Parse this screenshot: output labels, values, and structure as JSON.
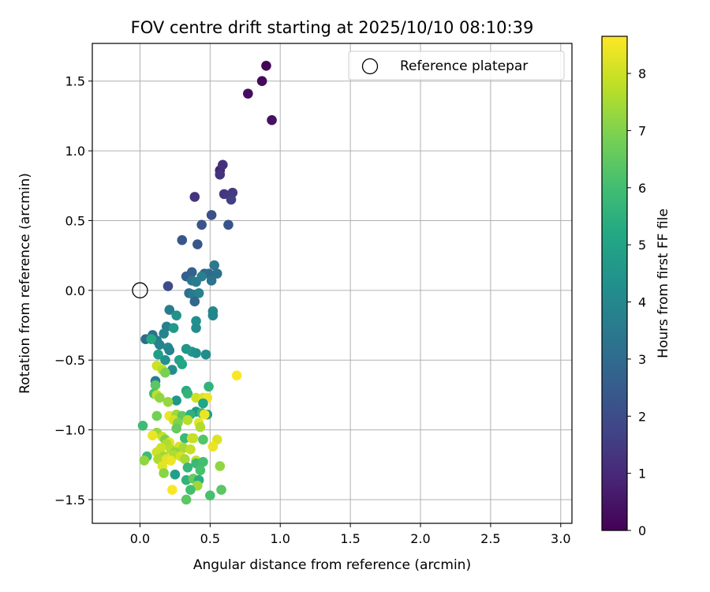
{
  "chart_data": {
    "type": "scatter",
    "title": "FOV centre drift starting at 2025/10/10 08:10:39",
    "xlabel": "Angular distance from reference (arcmin)",
    "ylabel": "Rotation from reference (arcmin)",
    "xlim": [
      -0.34,
      3.08
    ],
    "ylim": [
      -1.67,
      1.77
    ],
    "xticks": [
      0.0,
      0.5,
      1.0,
      1.5,
      2.0,
      2.5,
      3.0
    ],
    "xtick_labels": [
      "0.0",
      "0.5",
      "1.0",
      "1.5",
      "2.0",
      "2.5",
      "3.0"
    ],
    "yticks": [
      -1.5,
      -1.0,
      -0.5,
      0.0,
      0.5,
      1.0,
      1.5
    ],
    "ytick_labels": [
      "−1.5",
      "−1.0",
      "−0.5",
      "0.0",
      "0.5",
      "1.0",
      "1.5"
    ],
    "grid": true,
    "legend": {
      "label": "Reference platepar",
      "position": "top-right"
    },
    "reference_point": {
      "x": 0.0,
      "y": 0.0
    },
    "colorbar": {
      "label": "Hours from first FF file",
      "range": [
        0,
        8.65
      ],
      "ticks": [
        0,
        1,
        2,
        3,
        4,
        5,
        6,
        7,
        8
      ],
      "tick_labels": [
        "0",
        "1",
        "2",
        "3",
        "4",
        "5",
        "6",
        "7",
        "8"
      ],
      "colormap": "viridis"
    },
    "series": [
      {
        "name": "FOV centre",
        "points": [
          {
            "x": 0.9,
            "y": 1.61,
            "h": 0.1
          },
          {
            "x": 0.87,
            "y": 1.5,
            "h": 0.2
          },
          {
            "x": 0.77,
            "y": 1.41,
            "h": 0.3
          },
          {
            "x": 0.94,
            "y": 1.22,
            "h": 0.4
          },
          {
            "x": 0.57,
            "y": 0.86,
            "h": 0.8
          },
          {
            "x": 0.59,
            "y": 0.9,
            "h": 1.2
          },
          {
            "x": 0.57,
            "y": 0.83,
            "h": 1.3
          },
          {
            "x": 0.6,
            "y": 0.69,
            "h": 1.4
          },
          {
            "x": 0.66,
            "y": 0.7,
            "h": 1.5
          },
          {
            "x": 0.65,
            "y": 0.65,
            "h": 1.6
          },
          {
            "x": 0.39,
            "y": 0.67,
            "h": 1.3
          },
          {
            "x": 0.51,
            "y": 0.54,
            "h": 2.1
          },
          {
            "x": 0.44,
            "y": 0.47,
            "h": 2.2
          },
          {
            "x": 0.63,
            "y": 0.47,
            "h": 2.2
          },
          {
            "x": 0.3,
            "y": 0.36,
            "h": 2.3
          },
          {
            "x": 0.41,
            "y": 0.33,
            "h": 2.3
          },
          {
            "x": 0.53,
            "y": 0.18,
            "h": 3.5
          },
          {
            "x": 0.33,
            "y": 0.1,
            "h": 2.6
          },
          {
            "x": 0.37,
            "y": 0.13,
            "h": 2.7
          },
          {
            "x": 0.46,
            "y": 0.12,
            "h": 2.8
          },
          {
            "x": 0.49,
            "y": 0.12,
            "h": 3.0
          },
          {
            "x": 0.55,
            "y": 0.12,
            "h": 3.2
          },
          {
            "x": 0.37,
            "y": 0.07,
            "h": 3.4
          },
          {
            "x": 0.4,
            "y": 0.06,
            "h": 3.6
          },
          {
            "x": 0.51,
            "y": 0.07,
            "h": 3.3
          },
          {
            "x": 0.44,
            "y": 0.1,
            "h": 3.7
          },
          {
            "x": 0.2,
            "y": 0.03,
            "h": 2.0
          },
          {
            "x": 0.35,
            "y": -0.02,
            "h": 3.2
          },
          {
            "x": 0.38,
            "y": -0.03,
            "h": 3.5
          },
          {
            "x": 0.42,
            "y": -0.02,
            "h": 3.8
          },
          {
            "x": 0.39,
            "y": -0.08,
            "h": 2.9
          },
          {
            "x": 0.21,
            "y": -0.14,
            "h": 3.6
          },
          {
            "x": 0.52,
            "y": -0.15,
            "h": 4.0
          },
          {
            "x": 0.52,
            "y": -0.18,
            "h": 3.9
          },
          {
            "x": 0.26,
            "y": -0.18,
            "h": 4.4
          },
          {
            "x": 0.4,
            "y": -0.22,
            "h": 4.3
          },
          {
            "x": 0.4,
            "y": -0.27,
            "h": 4.2
          },
          {
            "x": 0.19,
            "y": -0.26,
            "h": 3.7
          },
          {
            "x": 0.24,
            "y": -0.27,
            "h": 4.6
          },
          {
            "x": 0.17,
            "y": -0.31,
            "h": 3.9
          },
          {
            "x": 0.09,
            "y": -0.32,
            "h": 3.3
          },
          {
            "x": 0.04,
            "y": -0.35,
            "h": 3.0
          },
          {
            "x": 0.12,
            "y": -0.36,
            "h": 3.6
          },
          {
            "x": 0.08,
            "y": -0.35,
            "h": 5.3
          },
          {
            "x": 0.14,
            "y": -0.39,
            "h": 3.8
          },
          {
            "x": 0.2,
            "y": -0.41,
            "h": 4.1
          },
          {
            "x": 0.21,
            "y": -0.43,
            "h": 3.9
          },
          {
            "x": 0.33,
            "y": -0.42,
            "h": 4.5
          },
          {
            "x": 0.37,
            "y": -0.44,
            "h": 4.6
          },
          {
            "x": 0.4,
            "y": -0.45,
            "h": 4.3
          },
          {
            "x": 0.47,
            "y": -0.46,
            "h": 4.2
          },
          {
            "x": 0.13,
            "y": -0.46,
            "h": 4.8
          },
          {
            "x": 0.18,
            "y": -0.5,
            "h": 4.4
          },
          {
            "x": 0.28,
            "y": -0.5,
            "h": 5.0
          },
          {
            "x": 0.3,
            "y": -0.53,
            "h": 5.1
          },
          {
            "x": 0.12,
            "y": -0.54,
            "h": 8.0
          },
          {
            "x": 0.16,
            "y": -0.57,
            "h": 7.7
          },
          {
            "x": 0.23,
            "y": -0.57,
            "h": 4.2
          },
          {
            "x": 0.18,
            "y": -0.59,
            "h": 6.9
          },
          {
            "x": 0.69,
            "y": -0.61,
            "h": 8.6
          },
          {
            "x": 0.11,
            "y": -0.65,
            "h": 3.6
          },
          {
            "x": 0.11,
            "y": -0.68,
            "h": 6.4
          },
          {
            "x": 0.49,
            "y": -0.69,
            "h": 5.6
          },
          {
            "x": 0.33,
            "y": -0.72,
            "h": 5.3
          },
          {
            "x": 0.34,
            "y": -0.74,
            "h": 5.6
          },
          {
            "x": 0.1,
            "y": -0.74,
            "h": 6.0
          },
          {
            "x": 0.12,
            "y": -0.75,
            "h": 7.8
          },
          {
            "x": 0.14,
            "y": -0.77,
            "h": 7.2
          },
          {
            "x": 0.4,
            "y": -0.77,
            "h": 8.0
          },
          {
            "x": 0.45,
            "y": -0.77,
            "h": 8.2
          },
          {
            "x": 0.48,
            "y": -0.77,
            "h": 8.4
          },
          {
            "x": 0.26,
            "y": -0.79,
            "h": 4.5
          },
          {
            "x": 0.2,
            "y": -0.8,
            "h": 7.3
          },
          {
            "x": 0.45,
            "y": -0.81,
            "h": 5.1
          },
          {
            "x": 0.4,
            "y": -0.87,
            "h": 4.6
          },
          {
            "x": 0.44,
            "y": -0.88,
            "h": 5.8
          },
          {
            "x": 0.48,
            "y": -0.89,
            "h": 4.9
          },
          {
            "x": 0.21,
            "y": -0.9,
            "h": 8.4
          },
          {
            "x": 0.26,
            "y": -0.89,
            "h": 7.4
          },
          {
            "x": 0.3,
            "y": -0.9,
            "h": 6.5
          },
          {
            "x": 0.36,
            "y": -0.89,
            "h": 5.5
          },
          {
            "x": 0.12,
            "y": -0.9,
            "h": 6.8
          },
          {
            "x": 0.46,
            "y": -0.89,
            "h": 8.4
          },
          {
            "x": 0.24,
            "y": -0.93,
            "h": 8.1
          },
          {
            "x": 0.34,
            "y": -0.93,
            "h": 7.7
          },
          {
            "x": 0.42,
            "y": -0.95,
            "h": 8.3
          },
          {
            "x": 0.27,
            "y": -0.95,
            "h": 7.0
          },
          {
            "x": 0.43,
            "y": -0.98,
            "h": 7.6
          },
          {
            "x": 0.26,
            "y": -0.99,
            "h": 6.6
          },
          {
            "x": 0.02,
            "y": -0.97,
            "h": 5.9
          },
          {
            "x": 0.12,
            "y": -1.02,
            "h": 7.3
          },
          {
            "x": 0.16,
            "y": -1.05,
            "h": 7.9
          },
          {
            "x": 0.09,
            "y": -1.04,
            "h": 8.4
          },
          {
            "x": 0.18,
            "y": -1.07,
            "h": 6.9
          },
          {
            "x": 0.32,
            "y": -1.06,
            "h": 5.8
          },
          {
            "x": 0.37,
            "y": -1.06,
            "h": 8.1
          },
          {
            "x": 0.38,
            "y": -1.06,
            "h": 7.9
          },
          {
            "x": 0.45,
            "y": -1.07,
            "h": 6.3
          },
          {
            "x": 0.55,
            "y": -1.07,
            "h": 8.2
          },
          {
            "x": 0.52,
            "y": -1.12,
            "h": 8.4
          },
          {
            "x": 0.21,
            "y": -1.09,
            "h": 8.3
          },
          {
            "x": 0.19,
            "y": -1.1,
            "h": 7.6
          },
          {
            "x": 0.15,
            "y": -1.13,
            "h": 8.0
          },
          {
            "x": 0.22,
            "y": -1.14,
            "h": 7.7
          },
          {
            "x": 0.28,
            "y": -1.12,
            "h": 8.1
          },
          {
            "x": 0.31,
            "y": -1.13,
            "h": 7.5
          },
          {
            "x": 0.36,
            "y": -1.14,
            "h": 7.9
          },
          {
            "x": 0.25,
            "y": -1.16,
            "h": 7.2
          },
          {
            "x": 0.12,
            "y": -1.16,
            "h": 8.0
          },
          {
            "x": 0.17,
            "y": -1.19,
            "h": 7.4
          },
          {
            "x": 0.24,
            "y": -1.18,
            "h": 7.6
          },
          {
            "x": 0.29,
            "y": -1.19,
            "h": 8.1
          },
          {
            "x": 0.05,
            "y": -1.19,
            "h": 5.9
          },
          {
            "x": 0.03,
            "y": -1.22,
            "h": 7.2
          },
          {
            "x": 0.13,
            "y": -1.21,
            "h": 7.6
          },
          {
            "x": 0.19,
            "y": -1.21,
            "h": 8.3
          },
          {
            "x": 0.22,
            "y": -1.22,
            "h": 8.4
          },
          {
            "x": 0.32,
            "y": -1.21,
            "h": 7.5
          },
          {
            "x": 0.4,
            "y": -1.22,
            "h": 7.8
          },
          {
            "x": 0.4,
            "y": -1.24,
            "h": 5.8
          },
          {
            "x": 0.45,
            "y": -1.23,
            "h": 6.0
          },
          {
            "x": 0.16,
            "y": -1.26,
            "h": 8.3
          },
          {
            "x": 0.34,
            "y": -1.27,
            "h": 5.7
          },
          {
            "x": 0.43,
            "y": -1.29,
            "h": 6.1
          },
          {
            "x": 0.57,
            "y": -1.26,
            "h": 7.2
          },
          {
            "x": 0.17,
            "y": -1.31,
            "h": 7.1
          },
          {
            "x": 0.25,
            "y": -1.32,
            "h": 4.9
          },
          {
            "x": 0.33,
            "y": -1.36,
            "h": 5.6
          },
          {
            "x": 0.38,
            "y": -1.35,
            "h": 6.6
          },
          {
            "x": 0.42,
            "y": -1.36,
            "h": 5.4
          },
          {
            "x": 0.41,
            "y": -1.4,
            "h": 7.4
          },
          {
            "x": 0.23,
            "y": -1.43,
            "h": 8.6
          },
          {
            "x": 0.36,
            "y": -1.43,
            "h": 6.0
          },
          {
            "x": 0.58,
            "y": -1.43,
            "h": 6.4
          },
          {
            "x": 0.5,
            "y": -1.47,
            "h": 6.1
          },
          {
            "x": 0.33,
            "y": -1.5,
            "h": 6.4
          }
        ]
      }
    ]
  }
}
